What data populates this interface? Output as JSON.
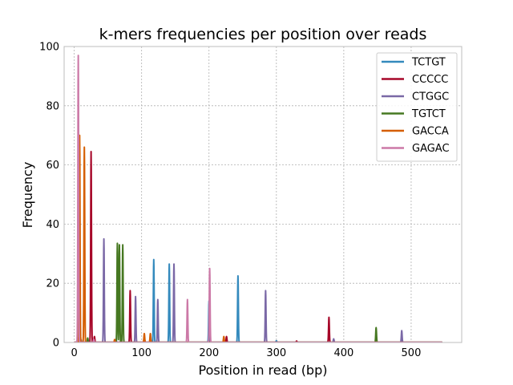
{
  "chart_data": {
    "type": "line",
    "title": "k-mers frequencies per position over reads",
    "xlabel": "Position in read (bp)",
    "ylabel": "Frequency",
    "xlim": [
      -15,
      575
    ],
    "ylim": [
      0,
      100
    ],
    "x_ticks": [
      0,
      100,
      200,
      300,
      400,
      500
    ],
    "y_ticks": [
      0,
      20,
      40,
      60,
      80,
      100
    ],
    "x_tick_labels": [
      "0",
      "100",
      "200",
      "300",
      "400",
      "500"
    ],
    "y_tick_labels": [
      "0",
      "20",
      "40",
      "60",
      "80",
      "100"
    ],
    "grid": true,
    "legend_position": "top-right",
    "x_range": [
      0,
      546
    ],
    "series": [
      {
        "name": "TCTGT",
        "color": "#348abd",
        "peaks": [
          [
            118,
            28
          ],
          [
            141,
            26.5
          ],
          [
            243,
            22.5
          ],
          [
            200,
            14
          ],
          [
            62,
            1
          ],
          [
            300,
            0.6
          ]
        ]
      },
      {
        "name": "CCCCC",
        "color": "#a60628",
        "peaks": [
          [
            25,
            64.5
          ],
          [
            83,
            17.5
          ],
          [
            378,
            8.5
          ],
          [
            226,
            2
          ],
          [
            30,
            2
          ],
          [
            330,
            0.5
          ]
        ]
      },
      {
        "name": "CTGGC",
        "color": "#7a68a6",
        "peaks": [
          [
            44,
            35
          ],
          [
            91,
            15.5
          ],
          [
            124,
            14.5
          ],
          [
            148,
            26.5
          ],
          [
            284,
            17.5
          ],
          [
            486,
            4
          ],
          [
            385,
            1.2
          ],
          [
            10,
            1
          ]
        ]
      },
      {
        "name": "TGTCT",
        "color": "#467821",
        "peaks": [
          [
            64,
            33.5
          ],
          [
            67,
            33
          ],
          [
            72,
            33
          ],
          [
            448,
            5
          ],
          [
            20,
            1.5
          ]
        ]
      },
      {
        "name": "GACCA",
        "color": "#d55e00",
        "peaks": [
          [
            8,
            70
          ],
          [
            15,
            66
          ],
          [
            104,
            3
          ],
          [
            113,
            3
          ],
          [
            222,
            2
          ],
          [
            60,
            1
          ]
        ]
      },
      {
        "name": "GAGAC",
        "color": "#cc79a7",
        "peaks": [
          [
            6,
            97
          ],
          [
            168,
            14.5
          ],
          [
            201,
            25
          ],
          [
            29,
            1
          ]
        ]
      }
    ]
  }
}
